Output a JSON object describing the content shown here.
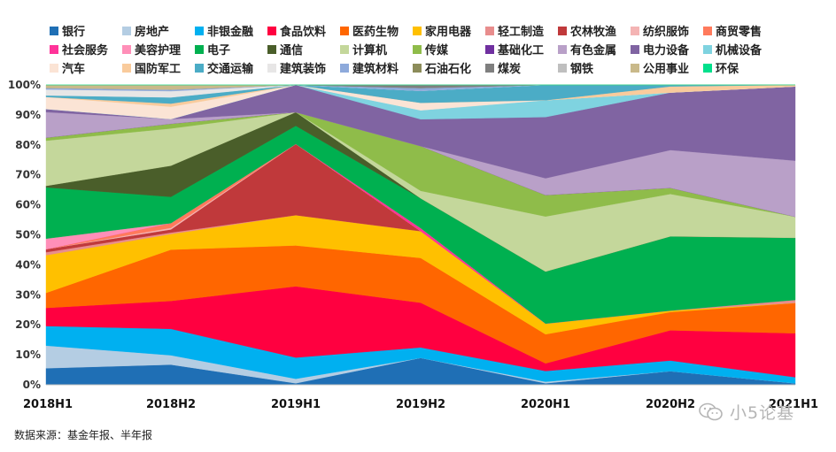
{
  "chart_data": {
    "type": "area",
    "stacked": "percent",
    "categories": [
      "2018H1",
      "2018H2",
      "2019H1",
      "2019H2",
      "2020H1",
      "2020H2",
      "2021H1"
    ],
    "yticks": [
      "0%",
      "10%",
      "20%",
      "30%",
      "40%",
      "50%",
      "60%",
      "70%",
      "80%",
      "90%",
      "100%"
    ],
    "ylim": [
      0,
      100
    ],
    "legend_position": "top",
    "series": [
      {
        "name": "银行",
        "color": "#1f6fb5",
        "values": [
          5.5,
          6.5,
          0.5,
          9,
          0.5,
          4.5,
          0.5
        ]
      },
      {
        "name": "房地产",
        "color": "#b4cde3",
        "values": [
          7.5,
          3,
          1.5,
          0,
          0.5,
          0,
          0
        ]
      },
      {
        "name": "非银金融",
        "color": "#00b0f0",
        "values": [
          6.5,
          8.5,
          7,
          3.5,
          3.5,
          3.5,
          2
        ]
      },
      {
        "name": "食品饮料",
        "color": "#ff0040",
        "values": [
          6,
          9,
          23.5,
          15,
          2.5,
          10,
          14.5
        ]
      },
      {
        "name": "医药生物",
        "color": "#ff6600",
        "values": [
          5,
          16.5,
          13.5,
          15,
          9.5,
          6,
          10
        ]
      },
      {
        "name": "家用电器",
        "color": "#ffc000",
        "values": [
          12.5,
          5,
          10,
          9,
          3.5,
          0.5,
          0
        ]
      },
      {
        "name": "轻工制造",
        "color": "#e88d8d",
        "values": [
          1,
          0.5,
          0,
          0,
          0,
          0,
          1
        ]
      },
      {
        "name": "农林牧渔",
        "color": "#c0393b",
        "values": [
          1,
          1,
          23.5,
          0,
          0,
          0,
          0
        ]
      },
      {
        "name": "纺织服饰",
        "color": "#f4b4b4",
        "values": [
          0,
          0.5,
          0,
          0,
          0,
          0,
          0
        ]
      },
      {
        "name": "商贸零售",
        "color": "#ff7a5c",
        "values": [
          0,
          1.5,
          0,
          0,
          0,
          0,
          0
        ]
      },
      {
        "name": "社会服务",
        "color": "#ff3399",
        "values": [
          0,
          0,
          0,
          1,
          0,
          0,
          0
        ]
      },
      {
        "name": "美容护理",
        "color": "#ff8fb8",
        "values": [
          3.5,
          0,
          0,
          0,
          0,
          0,
          0
        ]
      },
      {
        "name": "电子",
        "color": "#00b050",
        "values": [
          17,
          8.5,
          6,
          10,
          17,
          24.5,
          20.5
        ]
      },
      {
        "name": "通信",
        "color": "#4a5e2a",
        "values": [
          0.5,
          10,
          4.5,
          0,
          0,
          0,
          0
        ]
      },
      {
        "name": "计算机",
        "color": "#c4d79b",
        "values": [
          15,
          12,
          0,
          2.5,
          18,
          14,
          7
        ]
      },
      {
        "name": "传媒",
        "color": "#8fbc4a",
        "values": [
          1,
          1.5,
          0,
          15,
          7,
          2,
          0
        ]
      },
      {
        "name": "基础化工",
        "color": "#7030a0",
        "values": [
          0,
          0,
          0,
          0,
          0,
          0,
          0
        ]
      },
      {
        "name": "有色金属",
        "color": "#b9a0c8",
        "values": [
          8.5,
          1.5,
          0,
          0,
          5.5,
          12.5,
          18.5
        ]
      },
      {
        "name": "电力设备",
        "color": "#8064a2",
        "values": [
          1,
          0,
          9,
          9,
          20,
          19,
          24.5
        ]
      },
      {
        "name": "机械设备",
        "color": "#7fd3e0",
        "values": [
          0,
          0,
          0,
          3,
          5.5,
          0,
          0
        ]
      },
      {
        "name": "汽车",
        "color": "#fbe4d5",
        "values": [
          4,
          4,
          0,
          2.5,
          0,
          0,
          0
        ]
      },
      {
        "name": "国防军工",
        "color": "#f9cb9c",
        "values": [
          0,
          1,
          0,
          0,
          0,
          2,
          0.5
        ]
      },
      {
        "name": "交通运输",
        "color": "#4bacc6",
        "values": [
          0.5,
          2,
          0,
          4,
          5,
          0.5,
          0
        ]
      },
      {
        "name": "建筑装饰",
        "color": "#e7e6e6",
        "values": [
          2,
          2,
          0,
          0,
          0,
          0,
          0
        ]
      },
      {
        "name": "建筑材料",
        "color": "#8eaadb",
        "values": [
          0.5,
          0.5,
          0,
          1,
          0,
          0,
          0
        ]
      },
      {
        "name": "石油石化",
        "color": "#8c8c5a",
        "values": [
          0,
          0,
          0,
          0,
          0,
          0,
          0
        ]
      },
      {
        "name": "煤炭",
        "color": "#7f7f7f",
        "values": [
          0,
          0,
          0,
          1,
          0,
          0,
          0
        ]
      },
      {
        "name": "钢铁",
        "color": "#bfbfbf",
        "values": [
          0,
          0,
          0,
          0,
          0,
          0,
          0
        ]
      },
      {
        "name": "公用事业",
        "color": "#c9b98a",
        "values": [
          1,
          1.5,
          0,
          0,
          0,
          0,
          0
        ]
      },
      {
        "name": "环保",
        "color": "#00e08c",
        "values": [
          0,
          0,
          0,
          0,
          0,
          0,
          0
        ]
      }
    ]
  },
  "footer": {
    "source": "数据来源：基金年报、半年报"
  },
  "watermark": {
    "text": "小5论基",
    "icon": "wechat-icon"
  }
}
